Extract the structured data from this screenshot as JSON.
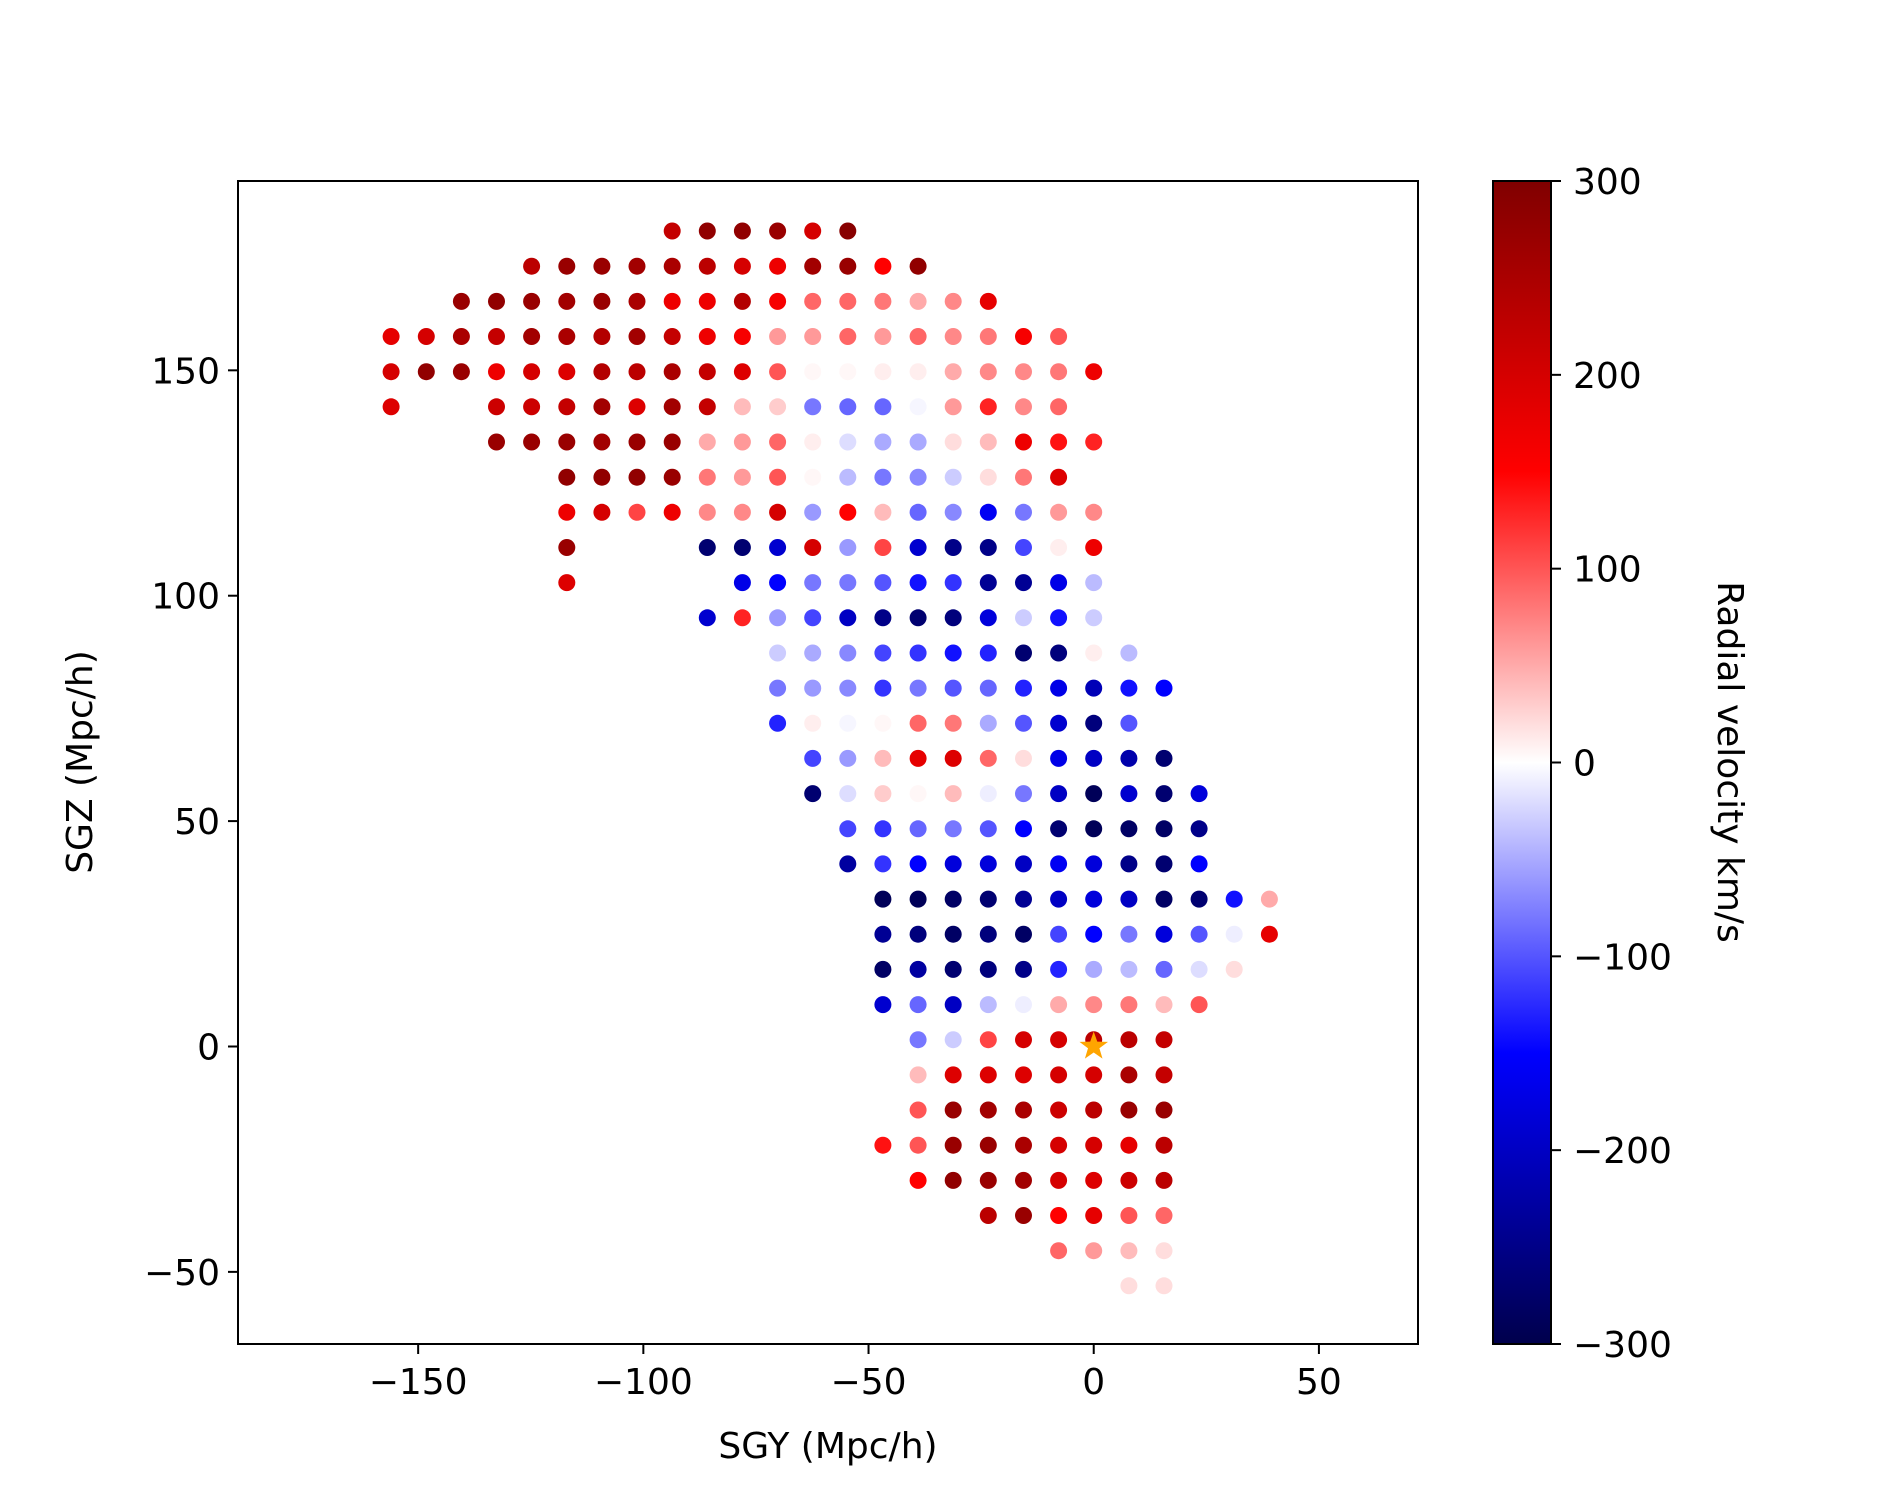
{
  "chart_data": {
    "type": "scatter",
    "title": "",
    "xlabel": "SGY (Mpc/h)",
    "ylabel": "SGZ (Mpc/h)",
    "xlim": [
      -190,
      72
    ],
    "ylim": [
      -66,
      192
    ],
    "xticks": [
      -150,
      -100,
      -50,
      0,
      50
    ],
    "yticks": [
      -50,
      0,
      50,
      100,
      150
    ],
    "xtick_labels": [
      "−150",
      "−100",
      "−50",
      "0",
      "50"
    ],
    "ytick_labels": [
      "−50",
      "0",
      "50",
      "100",
      "150"
    ],
    "grid": false,
    "grid_spacing": 7.8,
    "colormap": "seismic",
    "colorbar": {
      "label": "Radial velocity km/s",
      "range": [
        -300,
        300
      ],
      "ticks": [
        300,
        200,
        100,
        0,
        -100,
        -200,
        -300
      ],
      "tick_labels": [
        "300",
        "200",
        "100",
        "0",
        "−100",
        "−200",
        "−300"
      ]
    },
    "observer_marker": {
      "shape": "star",
      "color": "#ffa500",
      "x": 0,
      "y": 0
    },
    "rows": [
      {
        "z": 180.9,
        "x_start": -93.6,
        "v": [
          220,
          280,
          280,
          270,
          200,
          290
        ]
      },
      {
        "z": 173.1,
        "x_start": -124.8,
        "v": [
          230,
          270,
          270,
          260,
          250,
          230,
          200,
          170,
          260,
          270,
          150,
          280
        ]
      },
      {
        "z": 165.3,
        "x_start": -140.4,
        "v": [
          270,
          280,
          270,
          260,
          270,
          250,
          170,
          170,
          240,
          160,
          90,
          90,
          80,
          50,
          70,
          180
        ]
      },
      {
        "z": 157.5,
        "x_start": -156.0,
        "v": [
          180,
          200,
          250,
          220,
          260,
          250,
          240,
          260,
          220,
          170,
          160,
          60,
          60,
          90,
          60,
          90,
          70,
          80,
          160,
          100
        ]
      },
      {
        "z": 149.7,
        "x_start": -156.0,
        "v": [
          200,
          280,
          270,
          170,
          200,
          190,
          240,
          230,
          250,
          220,
          190,
          100,
          5,
          5,
          10,
          10,
          50,
          70,
          70,
          80,
          170
        ]
      },
      {
        "z": 141.9,
        "x_start": -156.0,
        "v": [
          190,
          -1,
          -1,
          210,
          210,
          220,
          260,
          190,
          260,
          220,
          40,
          30,
          -80,
          -90,
          -90,
          -5,
          60,
          130,
          70,
          90
        ]
      },
      {
        "z": 134.1,
        "x_start": -132.6,
        "v": [
          270,
          270,
          270,
          260,
          270,
          270,
          50,
          60,
          90,
          10,
          -20,
          -50,
          -50,
          20,
          40,
          170,
          140,
          130
        ]
      },
      {
        "z": 126.3,
        "x_start": -117.0,
        "v": [
          280,
          280,
          280,
          270,
          80,
          60,
          100,
          5,
          -40,
          -80,
          -70,
          -30,
          20,
          80,
          190
        ]
      },
      {
        "z": 118.5,
        "x_start": -117.0,
        "v": [
          170,
          200,
          110,
          170,
          70,
          70,
          200,
          -60,
          150,
          40,
          -90,
          -70,
          -160,
          -80,
          60,
          70
        ]
      },
      {
        "z": 110.7,
        "x_start": -117.0,
        "v": [
          270,
          -1,
          -1,
          -1,
          -270,
          -270,
          -190,
          200,
          -60,
          110,
          -190,
          -250,
          -250,
          -110,
          10,
          170
        ]
      },
      {
        "z": 102.9,
        "x_start": -117.0,
        "v": [
          190,
          -1,
          -1,
          -1,
          -1,
          -170,
          -150,
          -80,
          -80,
          -100,
          -140,
          -120,
          -240,
          -240,
          -170,
          -40
        ]
      },
      {
        "z": 95.1,
        "x_start": -85.8,
        "v": [
          -190,
          130,
          -60,
          -110,
          -200,
          -250,
          -270,
          -260,
          -180,
          -30,
          -140,
          -30
        ]
      },
      {
        "z": 87.3,
        "x_start": -70.2,
        "v": [
          -30,
          -50,
          -70,
          -110,
          -120,
          -140,
          -130,
          -270,
          -260,
          10,
          -40
        ]
      },
      {
        "z": 79.5,
        "x_start": -70.2,
        "v": [
          -80,
          -60,
          -70,
          -120,
          -80,
          -100,
          -90,
          -130,
          -170,
          -210,
          -140,
          -150
        ]
      },
      {
        "z": 71.7,
        "x_start": -70.2,
        "v": [
          -130,
          10,
          -5,
          5,
          90,
          80,
          -50,
          -100,
          -190,
          -260,
          -100
        ]
      },
      {
        "z": 63.9,
        "x_start": -62.4,
        "v": [
          -110,
          -60,
          40,
          180,
          190,
          90,
          20,
          -170,
          -200,
          -220,
          -270
        ]
      },
      {
        "z": 56.1,
        "x_start": -62.4,
        "v": [
          -270,
          -20,
          30,
          5,
          40,
          -10,
          -80,
          -200,
          -290,
          -190,
          -270,
          -180
        ]
      },
      {
        "z": 48.3,
        "x_start": -54.6,
        "v": [
          -110,
          -120,
          -90,
          -80,
          -100,
          -150,
          -270,
          -290,
          -280,
          -280,
          -250
        ]
      },
      {
        "z": 40.5,
        "x_start": -54.6,
        "v": [
          -230,
          -120,
          -150,
          -180,
          -180,
          -200,
          -160,
          -180,
          -250,
          -270,
          -150
        ]
      },
      {
        "z": 32.7,
        "x_start": -46.8,
        "v": [
          -290,
          -290,
          -280,
          -270,
          -240,
          -200,
          -180,
          -200,
          -280,
          -270,
          -140,
          50
        ]
      },
      {
        "z": 24.9,
        "x_start": -46.8,
        "v": [
          -240,
          -260,
          -280,
          -260,
          -280,
          -110,
          -150,
          -80,
          -180,
          -100,
          -10,
          180
        ]
      },
      {
        "z": 17.1,
        "x_start": -46.8,
        "v": [
          -280,
          -230,
          -270,
          -260,
          -250,
          -130,
          -50,
          -40,
          -90,
          -20,
          20
        ]
      },
      {
        "z": 9.3,
        "x_start": -46.8,
        "v": [
          -190,
          -90,
          -200,
          -40,
          -10,
          50,
          70,
          80,
          40,
          100
        ]
      },
      {
        "z": 1.5,
        "x_start": -39.0,
        "v": [
          -80,
          -30,
          110,
          200,
          200,
          230,
          230,
          220
        ]
      },
      {
        "z": -6.3,
        "x_start": -39.0,
        "v": [
          40,
          190,
          190,
          190,
          200,
          200,
          250,
          220
        ]
      },
      {
        "z": -14.1,
        "x_start": -39.0,
        "v": [
          100,
          270,
          260,
          250,
          210,
          230,
          270,
          270
        ]
      },
      {
        "z": -21.9,
        "x_start": -46.8,
        "v": [
          140,
          100,
          270,
          270,
          250,
          200,
          200,
          180,
          230
        ]
      },
      {
        "z": -29.7,
        "x_start": -39.0,
        "v": [
          150,
          280,
          270,
          260,
          200,
          190,
          210,
          230
        ]
      },
      {
        "z": -37.5,
        "x_start": -23.4,
        "v": [
          230,
          270,
          150,
          180,
          100,
          90
        ]
      },
      {
        "z": -45.3,
        "x_start": -7.8,
        "v": [
          90,
          60,
          40,
          20
        ]
      },
      {
        "z": -53.1,
        "x_start": 7.8,
        "v": [
          20,
          20
        ]
      }
    ]
  }
}
